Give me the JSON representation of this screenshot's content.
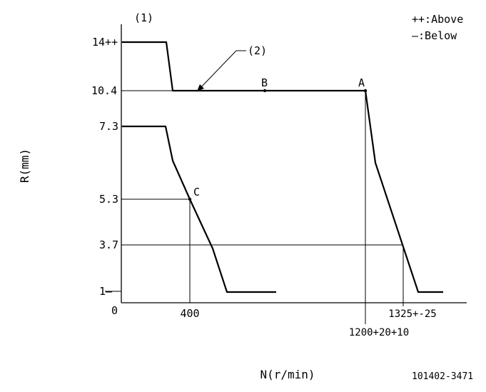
{
  "diagram": {
    "curve_label_1": "(1)",
    "curve_label_2": "(2)",
    "legend": {
      "above": "++:Above",
      "below": "—:Below"
    },
    "y_axis": {
      "label": "R(mm)",
      "ticks": [
        "14++",
        "10.4",
        "7.3",
        "5.3",
        "3.7",
        "1—"
      ],
      "origin": "0"
    },
    "x_axis": {
      "label": "N(r/min)",
      "ticks": [
        "400",
        "1200+20+10",
        "1325+-25"
      ]
    },
    "points": [
      "A",
      "B",
      "C"
    ],
    "reference": "101402-3471"
  }
}
